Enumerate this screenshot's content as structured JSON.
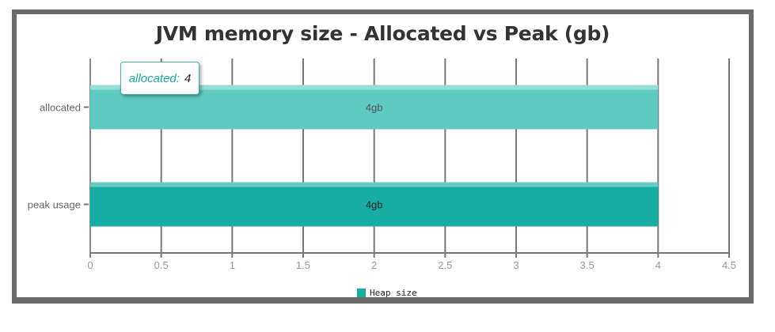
{
  "chart_data": {
    "type": "bar",
    "orientation": "horizontal",
    "title": "JVM memory size - Allocated vs Peak (gb)",
    "categories": [
      "allocated",
      "peak usage"
    ],
    "series": [
      {
        "name": "Heap size",
        "values": [
          4,
          4
        ]
      }
    ],
    "data_labels": [
      "4gb",
      "4gb"
    ],
    "bar_colors": [
      "#5ecac2",
      "#16ada3"
    ],
    "xlim": [
      0,
      4.5
    ],
    "x_ticks": [
      "0",
      "0.5",
      "1",
      "1.5",
      "2",
      "2.5",
      "3",
      "3.5",
      "4",
      "4.5"
    ],
    "grid": true,
    "legend": "bottom-center",
    "tooltip": {
      "label": "allocated:",
      "value": "4"
    }
  }
}
